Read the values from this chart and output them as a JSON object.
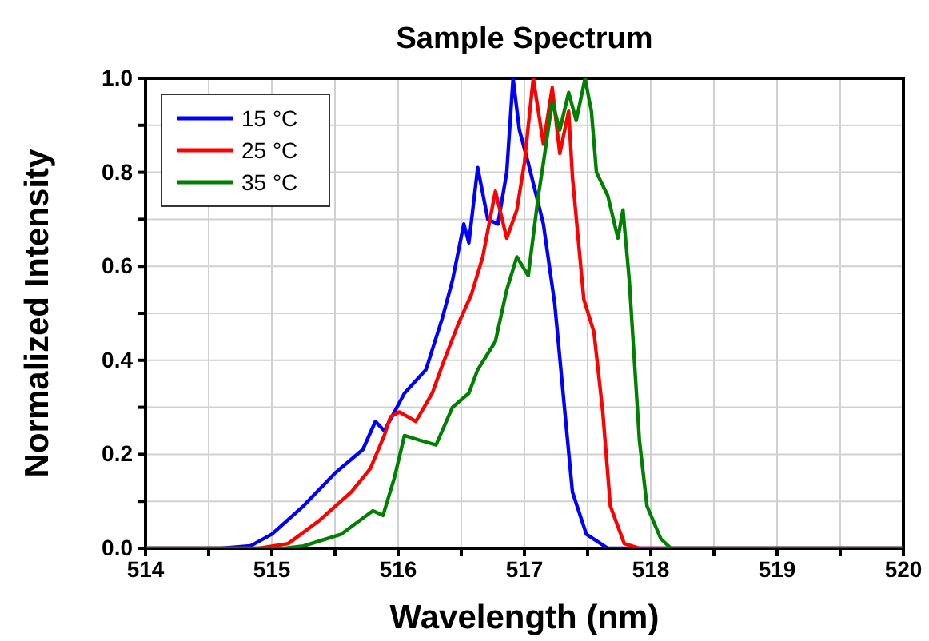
{
  "chart_data": {
    "type": "line",
    "title": "Sample Spectrum",
    "xlabel": "Wavelength (nm)",
    "ylabel": "Normalized Intensity",
    "xlim": [
      514,
      520
    ],
    "ylim": [
      0,
      1
    ],
    "xticks": [
      514,
      {
        "value": 514.5,
        "label": null
      },
      515,
      {
        "value": 515.5,
        "label": null
      },
      516,
      {
        "value": 516.5,
        "label": null
      },
      517,
      {
        "value": 517.5,
        "label": null
      },
      518,
      {
        "value": 518.5,
        "label": null
      },
      519,
      {
        "value": 519.5,
        "label": null
      },
      520
    ],
    "yticks": [
      {
        "value": 0,
        "label": "0.0"
      },
      {
        "value": 0.1,
        "label": null
      },
      {
        "value": 0.2,
        "label": "0.2"
      },
      {
        "value": 0.3,
        "label": null
      },
      {
        "value": 0.4,
        "label": "0.4"
      },
      {
        "value": 0.5,
        "label": null
      },
      {
        "value": 0.6,
        "label": "0.6"
      },
      {
        "value": 0.7,
        "label": null
      },
      {
        "value": 0.8,
        "label": "0.8"
      },
      {
        "value": 0.9,
        "label": null
      },
      {
        "value": 1,
        "label": "1.0"
      }
    ],
    "grid": true,
    "legend": "top left",
    "series": [
      {
        "name": "15 °C",
        "color": "#0000ff",
        "x": [
          514,
          514.6,
          514.83,
          515.0,
          515.25,
          515.5,
          515.72,
          515.82,
          515.89,
          516.05,
          516.22,
          516.35,
          516.43,
          516.52,
          516.56,
          516.63,
          516.71,
          516.79,
          516.86,
          516.91,
          516.96,
          517.03,
          517.15,
          517.24,
          517.32,
          517.38,
          517.49,
          517.66,
          520
        ],
        "values": [
          0,
          0,
          0.005,
          0.03,
          0.09,
          0.16,
          0.21,
          0.27,
          0.25,
          0.33,
          0.38,
          0.49,
          0.57,
          0.69,
          0.65,
          0.81,
          0.7,
          0.69,
          0.8,
          1.0,
          0.89,
          0.82,
          0.69,
          0.52,
          0.29,
          0.12,
          0.03,
          0,
          0
        ]
      },
      {
        "name": "25 °C",
        "color": "#ff0000",
        "x": [
          514,
          514.9,
          515.13,
          515.38,
          515.63,
          515.78,
          515.89,
          515.94,
          516.01,
          516.14,
          516.27,
          516.35,
          516.48,
          516.58,
          516.67,
          516.77,
          516.86,
          516.94,
          517.0,
          517.07,
          517.15,
          517.22,
          517.28,
          517.35,
          517.38,
          517.47,
          517.55,
          517.62,
          517.68,
          517.79,
          517.91,
          520
        ],
        "values": [
          0,
          0,
          0.01,
          0.06,
          0.12,
          0.17,
          0.24,
          0.28,
          0.29,
          0.27,
          0.33,
          0.39,
          0.48,
          0.54,
          0.62,
          0.76,
          0.66,
          0.72,
          0.82,
          1.0,
          0.86,
          0.98,
          0.84,
          0.93,
          0.79,
          0.53,
          0.46,
          0.29,
          0.09,
          0.01,
          0,
          0
        ]
      },
      {
        "name": "35 °C",
        "color": "#008000",
        "x": [
          514,
          515.1,
          515.25,
          515.55,
          515.8,
          515.88,
          515.97,
          516.05,
          516.17,
          516.3,
          516.43,
          516.56,
          516.63,
          516.77,
          516.86,
          516.94,
          517.03,
          517.11,
          517.15,
          517.22,
          517.28,
          517.35,
          517.41,
          517.48,
          517.53,
          517.57,
          517.66,
          517.74,
          517.78,
          517.83,
          517.87,
          517.91,
          517.97,
          518.08,
          518.16,
          520
        ],
        "values": [
          0,
          0,
          0.005,
          0.03,
          0.08,
          0.07,
          0.15,
          0.24,
          0.23,
          0.22,
          0.3,
          0.33,
          0.38,
          0.44,
          0.55,
          0.62,
          0.58,
          0.75,
          0.82,
          0.95,
          0.89,
          0.97,
          0.91,
          1.0,
          0.93,
          0.8,
          0.75,
          0.66,
          0.72,
          0.57,
          0.4,
          0.23,
          0.09,
          0.02,
          0,
          0
        ]
      }
    ]
  }
}
